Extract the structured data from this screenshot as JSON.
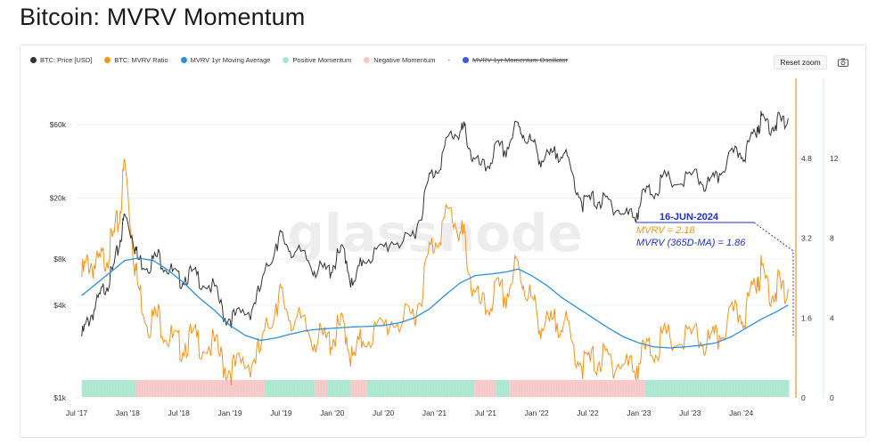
{
  "page": {
    "title": "Bitcoin: MVRV Momentum"
  },
  "legend": [
    {
      "label": "BTC: Price [USD]",
      "color": "#333333",
      "struck": false
    },
    {
      "label": "BTC: MVRV Ratio",
      "color": "#f7931a",
      "struck": false
    },
    {
      "label": "MVRV 1yr Moving Average",
      "color": "#2d8fe0",
      "struck": false
    },
    {
      "label": "Positive Momentum",
      "color": "#a8e6cf",
      "struck": false
    },
    {
      "label": "Negative Momentum",
      "color": "#f6c6c6",
      "struck": false
    },
    {
      "label": "-",
      "color": "",
      "struck": false
    },
    {
      "label": "MVRV 1yr Momentum Oscillator",
      "color": "#3b5bdb",
      "struck": true
    }
  ],
  "toolbar": {
    "reset_zoom": "Reset zoom",
    "camera_icon": "camera-icon"
  },
  "watermark": "glassnode",
  "annotation": {
    "date": "16-JUN-2024",
    "mvrv": "MVRV = 2.18",
    "mvrv_ma": "MVRV (365D-MA) = 1.86"
  },
  "chart_data": {
    "type": "line",
    "x_ticks": [
      "Jul '17",
      "Jan '18",
      "Jul '18",
      "Jan '19",
      "Jul '19",
      "Jan '20",
      "Jul '20",
      "Jan '21",
      "Jul '21",
      "Jan '22",
      "Jul '22",
      "Jan '23",
      "Jul '23",
      "Jan '24"
    ],
    "y_left": {
      "scale": "log",
      "ticks": [
        "$1k",
        "$4k",
        "$8k",
        "$20k",
        "$60k"
      ],
      "range": [
        1000,
        120000
      ]
    },
    "y_right_inner": {
      "ticks": [
        "0",
        "1.6",
        "3.2",
        "4.8"
      ],
      "range": [
        0,
        6.4
      ]
    },
    "y_right_outer": {
      "ticks": [
        "0",
        "4",
        "8",
        "12"
      ],
      "range": [
        0,
        16
      ]
    },
    "colors": {
      "price": "#333333",
      "mvrv": "#f7931a",
      "ma": "#2d8fe0",
      "positive": "#a8e6cf",
      "negative": "#f6c6c6",
      "annotation": "#1f2fd6"
    },
    "series": [
      {
        "name": "BTC: Price [USD]",
        "axis": "left",
        "points": [
          [
            2017.55,
            2700
          ],
          [
            2017.62,
            3500
          ],
          [
            2017.7,
            4400
          ],
          [
            2017.78,
            5800
          ],
          [
            2017.85,
            7000
          ],
          [
            2017.92,
            11000
          ],
          [
            2017.97,
            16500
          ],
          [
            2018.05,
            12000
          ],
          [
            2018.1,
            8500
          ],
          [
            2018.2,
            8000
          ],
          [
            2018.3,
            9000
          ],
          [
            2018.4,
            7500
          ],
          [
            2018.5,
            6300
          ],
          [
            2018.6,
            6900
          ],
          [
            2018.7,
            6500
          ],
          [
            2018.85,
            5500
          ],
          [
            2018.95,
            3600
          ],
          [
            2019.05,
            3600
          ],
          [
            2019.2,
            4000
          ],
          [
            2019.3,
            5500
          ],
          [
            2019.45,
            11000
          ],
          [
            2019.5,
            12000
          ],
          [
            2019.6,
            10000
          ],
          [
            2019.75,
            8500
          ],
          [
            2019.85,
            7300
          ],
          [
            2019.97,
            7200
          ],
          [
            2020.05,
            8800
          ],
          [
            2020.12,
            10000
          ],
          [
            2020.2,
            5400
          ],
          [
            2020.3,
            8800
          ],
          [
            2020.45,
            9500
          ],
          [
            2020.6,
            11500
          ],
          [
            2020.75,
            11000
          ],
          [
            2020.85,
            15500
          ],
          [
            2020.95,
            29000
          ],
          [
            2021.05,
            36000
          ],
          [
            2021.15,
            55000
          ],
          [
            2021.25,
            58000
          ],
          [
            2021.3,
            60000
          ],
          [
            2021.38,
            37000
          ],
          [
            2021.5,
            33000
          ],
          [
            2021.6,
            45000
          ],
          [
            2021.7,
            44000
          ],
          [
            2021.8,
            63000
          ],
          [
            2021.87,
            57000
          ],
          [
            2021.97,
            47000
          ],
          [
            2022.05,
            38000
          ],
          [
            2022.15,
            40000
          ],
          [
            2022.25,
            45000
          ],
          [
            2022.35,
            30000
          ],
          [
            2022.45,
            20000
          ],
          [
            2022.55,
            21000
          ],
          [
            2022.65,
            20500
          ],
          [
            2022.75,
            19500
          ],
          [
            2022.85,
            16500
          ],
          [
            2022.97,
            16800
          ],
          [
            2023.05,
            23000
          ],
          [
            2023.15,
            24000
          ],
          [
            2023.25,
            28500
          ],
          [
            2023.4,
            27000
          ],
          [
            2023.55,
            30000
          ],
          [
            2023.65,
            26000
          ],
          [
            2023.75,
            28000
          ],
          [
            2023.85,
            37000
          ],
          [
            2023.97,
            42500
          ],
          [
            2024.05,
            43000
          ],
          [
            2024.15,
            62000
          ],
          [
            2024.2,
            70000
          ],
          [
            2024.3,
            64000
          ],
          [
            2024.37,
            68000
          ],
          [
            2024.46,
            66000
          ]
        ]
      },
      {
        "name": "BTC: MVRV Ratio",
        "axis": "inner",
        "points": [
          [
            2017.55,
            2.6
          ],
          [
            2017.62,
            2.9
          ],
          [
            2017.7,
            2.8
          ],
          [
            2017.78,
            3.0
          ],
          [
            2017.85,
            3.3
          ],
          [
            2017.92,
            3.8
          ],
          [
            2017.97,
            4.9
          ],
          [
            2018.05,
            3.2
          ],
          [
            2018.1,
            2.4
          ],
          [
            2018.2,
            1.7
          ],
          [
            2018.3,
            1.8
          ],
          [
            2018.4,
            1.4
          ],
          [
            2018.5,
            1.2
          ],
          [
            2018.6,
            1.35
          ],
          [
            2018.7,
            1.3
          ],
          [
            2018.85,
            1.2
          ],
          [
            2018.95,
            0.8
          ],
          [
            2019.05,
            0.75
          ],
          [
            2019.2,
            0.9
          ],
          [
            2019.3,
            1.1
          ],
          [
            2019.45,
            2.1
          ],
          [
            2019.5,
            2.2
          ],
          [
            2019.6,
            1.8
          ],
          [
            2019.75,
            1.5
          ],
          [
            2019.85,
            1.35
          ],
          [
            2019.97,
            1.3
          ],
          [
            2020.05,
            1.5
          ],
          [
            2020.12,
            1.65
          ],
          [
            2020.2,
            0.85
          ],
          [
            2020.3,
            1.4
          ],
          [
            2020.45,
            1.5
          ],
          [
            2020.6,
            1.75
          ],
          [
            2020.75,
            1.7
          ],
          [
            2020.85,
            2.1
          ],
          [
            2020.95,
            3.1
          ],
          [
            2021.05,
            3.5
          ],
          [
            2021.15,
            3.9
          ],
          [
            2021.25,
            3.5
          ],
          [
            2021.3,
            3.3
          ],
          [
            2021.38,
            2.2
          ],
          [
            2021.5,
            1.9
          ],
          [
            2021.6,
            2.3
          ],
          [
            2021.7,
            2.2
          ],
          [
            2021.8,
            2.8
          ],
          [
            2021.87,
            2.5
          ],
          [
            2021.97,
            2.0
          ],
          [
            2022.05,
            1.6
          ],
          [
            2022.15,
            1.6
          ],
          [
            2022.25,
            1.8
          ],
          [
            2022.35,
            1.2
          ],
          [
            2022.45,
            0.85
          ],
          [
            2022.55,
            0.9
          ],
          [
            2022.65,
            0.95
          ],
          [
            2022.75,
            0.9
          ],
          [
            2022.85,
            0.8
          ],
          [
            2022.97,
            0.8
          ],
          [
            2023.05,
            1.1
          ],
          [
            2023.15,
            1.15
          ],
          [
            2023.25,
            1.35
          ],
          [
            2023.4,
            1.3
          ],
          [
            2023.55,
            1.4
          ],
          [
            2023.65,
            1.25
          ],
          [
            2023.75,
            1.3
          ],
          [
            2023.85,
            1.65
          ],
          [
            2023.97,
            1.85
          ],
          [
            2024.05,
            1.9
          ],
          [
            2024.15,
            2.6
          ],
          [
            2024.2,
            2.7
          ],
          [
            2024.3,
            2.3
          ],
          [
            2024.37,
            2.4
          ],
          [
            2024.46,
            2.18
          ]
        ]
      },
      {
        "name": "MVRV 1yr Moving Average",
        "axis": "inner",
        "points": [
          [
            2017.55,
            2.05
          ],
          [
            2017.7,
            2.3
          ],
          [
            2017.85,
            2.55
          ],
          [
            2017.97,
            2.75
          ],
          [
            2018.1,
            2.8
          ],
          [
            2018.25,
            2.75
          ],
          [
            2018.4,
            2.55
          ],
          [
            2018.55,
            2.3
          ],
          [
            2018.7,
            2.0
          ],
          [
            2018.85,
            1.75
          ],
          [
            2019.0,
            1.45
          ],
          [
            2019.15,
            1.25
          ],
          [
            2019.3,
            1.15
          ],
          [
            2019.45,
            1.2
          ],
          [
            2019.6,
            1.28
          ],
          [
            2019.75,
            1.35
          ],
          [
            2019.9,
            1.38
          ],
          [
            2020.05,
            1.4
          ],
          [
            2020.2,
            1.42
          ],
          [
            2020.35,
            1.43
          ],
          [
            2020.5,
            1.45
          ],
          [
            2020.65,
            1.5
          ],
          [
            2020.8,
            1.6
          ],
          [
            2020.95,
            1.78
          ],
          [
            2021.1,
            2.05
          ],
          [
            2021.25,
            2.3
          ],
          [
            2021.4,
            2.45
          ],
          [
            2021.55,
            2.48
          ],
          [
            2021.7,
            2.52
          ],
          [
            2021.82,
            2.58
          ],
          [
            2021.95,
            2.45
          ],
          [
            2022.1,
            2.25
          ],
          [
            2022.25,
            2.0
          ],
          [
            2022.4,
            1.8
          ],
          [
            2022.55,
            1.6
          ],
          [
            2022.7,
            1.4
          ],
          [
            2022.85,
            1.22
          ],
          [
            2023.0,
            1.1
          ],
          [
            2023.15,
            1.02
          ],
          [
            2023.3,
            1.0
          ],
          [
            2023.45,
            1.02
          ],
          [
            2023.6,
            1.05
          ],
          [
            2023.75,
            1.1
          ],
          [
            2023.9,
            1.22
          ],
          [
            2024.05,
            1.4
          ],
          [
            2024.2,
            1.58
          ],
          [
            2024.35,
            1.73
          ],
          [
            2024.46,
            1.86
          ]
        ]
      }
    ],
    "momentum": [
      {
        "start": 2017.55,
        "end": 2018.08,
        "state": "positive"
      },
      {
        "start": 2018.08,
        "end": 2019.34,
        "state": "negative"
      },
      {
        "start": 2019.34,
        "end": 2019.83,
        "state": "positive"
      },
      {
        "start": 2019.83,
        "end": 2019.95,
        "state": "negative"
      },
      {
        "start": 2019.95,
        "end": 2020.18,
        "state": "positive"
      },
      {
        "start": 2020.18,
        "end": 2020.34,
        "state": "negative"
      },
      {
        "start": 2020.34,
        "end": 2021.39,
        "state": "positive"
      },
      {
        "start": 2021.39,
        "end": 2021.6,
        "state": "negative"
      },
      {
        "start": 2021.6,
        "end": 2021.73,
        "state": "positive"
      },
      {
        "start": 2021.73,
        "end": 2023.06,
        "state": "negative"
      },
      {
        "start": 2023.06,
        "end": 2024.47,
        "state": "positive"
      }
    ]
  }
}
